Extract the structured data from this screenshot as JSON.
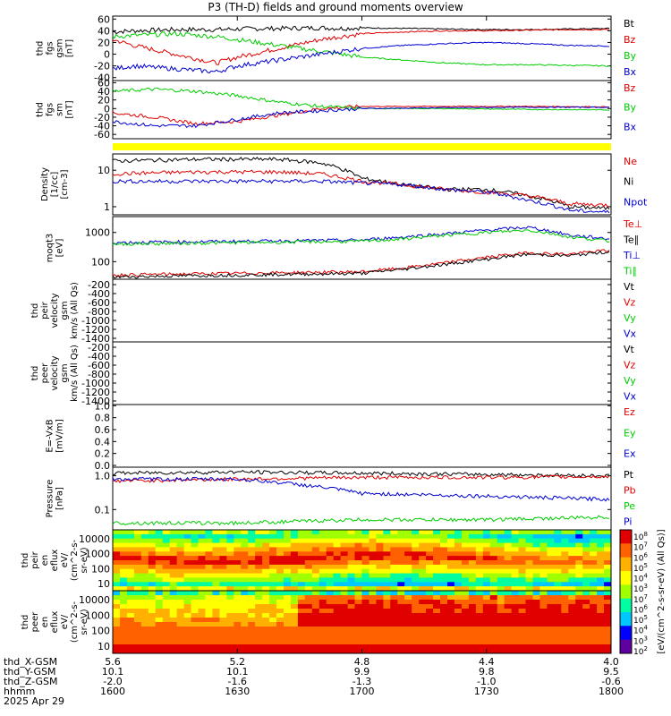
{
  "title": "P3 (TH-D) fields and ground moments overview",
  "colors": {
    "black": "#000000",
    "red": "#e00000",
    "green": "#00cc00",
    "blue": "#0000d0",
    "yellow": "#ffff00"
  },
  "chart_data": {
    "type": "line",
    "x_ticks": [
      {
        "x": "5.6",
        "y": "10.1",
        "z": "-2.0",
        "t": "1600"
      },
      {
        "x": "5.2",
        "y": "10.1",
        "z": "-1.6",
        "t": "1630"
      },
      {
        "x": "4.8",
        "y": "9.9",
        "z": "-1.3",
        "t": "1700"
      },
      {
        "x": "4.4",
        "y": "9.8",
        "z": "-1.0",
        "t": "1730"
      },
      {
        "x": "4.0",
        "y": "9.5",
        "z": "-0.6",
        "t": "1800"
      }
    ],
    "x_row_labels": [
      "thd_X-GSM",
      "thd_Y-GSM",
      "thd_Z-GSM",
      "hhmm",
      "2025 Apr 29"
    ],
    "panels": [
      {
        "id": "fgs_gsm",
        "ylabel": [
          "thd",
          "fgs",
          "gsm",
          "[nT]"
        ],
        "ticks": [
          "60",
          "40",
          "20",
          "0",
          "-20",
          "-40"
        ],
        "ylim": [
          -45,
          65
        ],
        "legend": [
          {
            "name": "Bt",
            "color": "black"
          },
          {
            "name": "Bz",
            "color": "red"
          },
          {
            "name": "By",
            "color": "green"
          },
          {
            "name": "Bx",
            "color": "blue"
          }
        ],
        "series": [
          {
            "name": "Bt",
            "color": "black",
            "x": [
              1600,
              1605,
              1615,
              1625,
              1630,
              1640,
              1650,
              1655,
              1700,
              1710,
              1720,
              1730,
              1740,
              1750,
              1800
            ],
            "y": [
              38,
              40,
              42,
              42,
              43,
              44,
              45,
              44,
              45,
              44,
              43,
              42,
              42,
              43,
              44
            ]
          },
          {
            "name": "Bz",
            "color": "red",
            "x": [
              1600,
              1605,
              1615,
              1625,
              1630,
              1640,
              1650,
              1655,
              1700,
              1710,
              1720,
              1730,
              1740,
              1750,
              1800
            ],
            "y": [
              25,
              15,
              0,
              -15,
              -5,
              10,
              25,
              30,
              35,
              38,
              40,
              40,
              41,
              42,
              42
            ]
          },
          {
            "name": "By",
            "color": "green",
            "x": [
              1600,
              1605,
              1615,
              1625,
              1630,
              1640,
              1650,
              1655,
              1700,
              1710,
              1720,
              1730,
              1740,
              1750,
              1800
            ],
            "y": [
              30,
              32,
              35,
              30,
              25,
              15,
              5,
              0,
              -5,
              -10,
              -15,
              -18,
              -18,
              -19,
              -20
            ]
          },
          {
            "name": "Bx",
            "color": "blue",
            "x": [
              1600,
              1605,
              1615,
              1625,
              1630,
              1640,
              1650,
              1655,
              1700,
              1710,
              1720,
              1730,
              1740,
              1750,
              1800
            ],
            "y": [
              -25,
              -20,
              -25,
              -30,
              -20,
              -10,
              0,
              5,
              10,
              15,
              18,
              20,
              18,
              15,
              14
            ]
          }
        ]
      },
      {
        "id": "fgs_sm",
        "ylabel": [
          "thd",
          "fgs",
          "sm",
          "[nT]"
        ],
        "ticks": [
          "60",
          "40",
          "20",
          "0",
          "-20",
          "-40",
          "-60"
        ],
        "ylim": [
          -70,
          65
        ],
        "legend": [
          {
            "name": "Bz",
            "color": "red"
          },
          {
            "name": "By",
            "color": "green"
          },
          {
            "name": "Bx",
            "color": "blue"
          }
        ],
        "series": [
          {
            "name": "Bz",
            "color": "red",
            "x": [
              1600,
              1610,
              1620,
              1630,
              1640,
              1650,
              1700,
              1720,
              1740,
              1800
            ],
            "y": [
              -10,
              -20,
              -35,
              -30,
              -15,
              0,
              5,
              5,
              5,
              4
            ]
          },
          {
            "name": "By",
            "color": "green",
            "x": [
              1600,
              1610,
              1620,
              1630,
              1640,
              1650,
              1700,
              1720,
              1740,
              1800
            ],
            "y": [
              40,
              45,
              40,
              30,
              15,
              5,
              0,
              0,
              -2,
              -3
            ]
          },
          {
            "name": "Bx",
            "color": "blue",
            "x": [
              1600,
              1610,
              1620,
              1630,
              1640,
              1650,
              1700,
              1720,
              1740,
              1800
            ],
            "y": [
              -30,
              -40,
              -40,
              -25,
              -10,
              -5,
              0,
              2,
              3,
              3
            ]
          }
        ]
      },
      {
        "id": "density",
        "ylabel": [
          "Density",
          "[1/cc]",
          "[cm-3]"
        ],
        "ticks": [
          "10",
          "1"
        ],
        "scale": "log",
        "legend": [
          {
            "name": "Ne",
            "color": "red"
          },
          {
            "name": "Ni",
            "color": "black"
          },
          {
            "name": "Npot",
            "color": "blue"
          }
        ],
        "series": [
          {
            "name": "Ni",
            "color": "black",
            "x": [
              1600,
              1620,
              1640,
              1650,
              1700,
              1710,
              1720,
              1730,
              1740,
              1750,
              1800
            ],
            "y": [
              18,
              20,
              20,
              16,
              6,
              4,
              3,
              3,
              2,
              1,
              0.9
            ]
          },
          {
            "name": "Ne",
            "color": "red",
            "x": [
              1600,
              1620,
              1640,
              1650,
              1700,
              1710,
              1720,
              1730,
              1740,
              1750,
              1800
            ],
            "y": [
              8,
              9,
              9,
              8,
              5,
              4,
              3,
              2.5,
              2,
              1.2,
              1.1
            ]
          },
          {
            "name": "Npot",
            "color": "blue",
            "x": [
              1600,
              1620,
              1640,
              1650,
              1700,
              1710,
              1720,
              1730,
              1740,
              1750,
              1800
            ],
            "y": [
              5,
              5,
              5,
              5,
              4.5,
              4,
              3,
              2.5,
              1.5,
              0.8,
              0.7
            ]
          }
        ]
      },
      {
        "id": "temp",
        "ylabel": [
          "moqt3",
          "[eV]"
        ],
        "ticks": [
          "1000",
          "100"
        ],
        "scale": "log",
        "legend": [
          {
            "name": "Te⊥",
            "color": "red"
          },
          {
            "name": "Te∥",
            "color": "black"
          },
          {
            "name": "Ti⊥",
            "color": "blue"
          },
          {
            "name": "Ti∥",
            "color": "green"
          }
        ],
        "series": [
          {
            "name": "Ti⊥",
            "color": "blue",
            "x": [
              1600,
              1630,
              1700,
              1710,
              1720,
              1730,
              1740,
              1750,
              1800
            ],
            "y": [
              450,
              500,
              550,
              700,
              900,
              1200,
              1500,
              800,
              600
            ]
          },
          {
            "name": "Ti∥",
            "color": "green",
            "x": [
              1600,
              1630,
              1700,
              1710,
              1720,
              1730,
              1740,
              1750,
              1800
            ],
            "y": [
              400,
              450,
              500,
              600,
              800,
              1000,
              1200,
              700,
              500
            ]
          },
          {
            "name": "Te⊥",
            "color": "red",
            "x": [
              1600,
              1630,
              1700,
              1710,
              1720,
              1730,
              1740,
              1750,
              1800
            ],
            "y": [
              35,
              40,
              45,
              60,
              90,
              140,
              200,
              180,
              250
            ]
          },
          {
            "name": "Te∥",
            "color": "black",
            "x": [
              1600,
              1630,
              1700,
              1710,
              1720,
              1730,
              1740,
              1750,
              1800
            ],
            "y": [
              30,
              35,
              40,
              55,
              80,
              120,
              180,
              160,
              220
            ]
          }
        ]
      },
      {
        "id": "peir_vel",
        "ylabel": [
          "thd",
          "peir",
          "velocity",
          "gsm",
          "km/s (All Qs)"
        ],
        "ticks": [
          "-200",
          "-400",
          "-600",
          "-800",
          "-1000",
          "-1200",
          "-1400"
        ],
        "legend": [
          {
            "name": "Vt",
            "color": "black"
          },
          {
            "name": "Vz",
            "color": "red"
          },
          {
            "name": "Vy",
            "color": "green"
          },
          {
            "name": "Vx",
            "color": "blue"
          }
        ]
      },
      {
        "id": "peer_vel",
        "ylabel": [
          "thd",
          "peer",
          "velocity",
          "gsm",
          "km/s (All Qs)"
        ],
        "ticks": [
          "-200",
          "-400",
          "-600",
          "-800",
          "-1000",
          "-1200",
          "-1400"
        ],
        "legend": [
          {
            "name": "Vt",
            "color": "black"
          },
          {
            "name": "Vz",
            "color": "red"
          },
          {
            "name": "Vy",
            "color": "green"
          },
          {
            "name": "Vx",
            "color": "blue"
          }
        ]
      },
      {
        "id": "efield",
        "ylabel": [
          "E=-VxB",
          "[mV/m]"
        ],
        "ticks": [
          "1.0",
          "0.8",
          "0.6",
          "0.4",
          "0.2",
          "0.0"
        ],
        "legend": [
          {
            "name": "Ez",
            "color": "red"
          },
          {
            "name": "Ey",
            "color": "green"
          },
          {
            "name": "Ex",
            "color": "blue"
          }
        ]
      },
      {
        "id": "pressure",
        "ylabel": [
          "Pressure",
          "[nPa]"
        ],
        "ticks": [
          "1.0",
          "0.1"
        ],
        "scale": "log",
        "legend": [
          {
            "name": "Pt",
            "color": "black"
          },
          {
            "name": "Pb",
            "color": "red"
          },
          {
            "name": "Pe",
            "color": "green"
          },
          {
            "name": "Pi",
            "color": "blue"
          }
        ],
        "series": [
          {
            "name": "Pt",
            "color": "black",
            "x": [
              1600,
              1630,
              1700,
              1730,
              1800
            ],
            "y": [
              1.2,
              1.3,
              1.2,
              1.1,
              1.0
            ]
          },
          {
            "name": "Pb",
            "color": "red",
            "x": [
              1600,
              1630,
              1700,
              1730,
              1800
            ],
            "y": [
              0.7,
              0.8,
              0.9,
              0.9,
              0.95
            ]
          },
          {
            "name": "Pi",
            "color": "blue",
            "x": [
              1600,
              1630,
              1700,
              1730,
              1800
            ],
            "y": [
              0.8,
              0.8,
              0.3,
              0.25,
              0.2
            ]
          },
          {
            "name": "Pe",
            "color": "green",
            "x": [
              1600,
              1630,
              1700,
              1730,
              1800
            ],
            "y": [
              0.04,
              0.04,
              0.05,
              0.05,
              0.06
            ]
          }
        ]
      },
      {
        "id": "peir_eflux",
        "type": "heatmap",
        "ylabel": [
          "thd",
          "peir",
          "en",
          "eflux",
          "eV/",
          "(cm^2-s-",
          "sr-eV)"
        ],
        "ticks": [
          "10000",
          "1000",
          "100",
          "10"
        ]
      },
      {
        "id": "peer_eflux",
        "type": "heatmap",
        "ylabel": [
          "thd",
          "peer",
          "en",
          "eflux",
          "eV/",
          "(cm^2-s-",
          "sr-eV)"
        ],
        "ticks": [
          "10000",
          "1000",
          "100",
          "10"
        ]
      }
    ],
    "colorbar": {
      "top_label": "eV/(cm^2-s-sr-eV) (All Qs)",
      "bottom_label": "[eV/(cm^2-s-sr-eV) (All Qs)]",
      "ticks_top": [
        "10^8",
        "10^7",
        "10^6",
        "10^5",
        "10^4",
        "10^3"
      ],
      "ticks_bottom": [
        "10^8",
        "10^7",
        "10^6",
        "10^5",
        "10^4",
        "10^3",
        "10^2"
      ]
    }
  }
}
